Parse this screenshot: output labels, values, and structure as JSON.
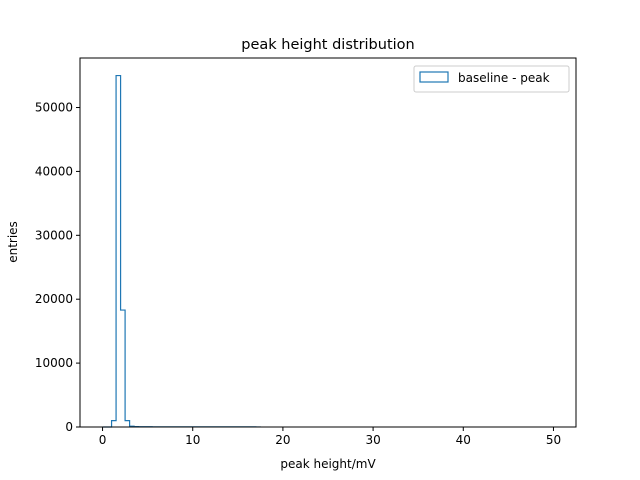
{
  "chart_data": {
    "type": "histogram-step",
    "title": "peak height distribution",
    "xlabel": "peak height/mV",
    "ylabel": "entries",
    "xlim": [
      -2.5,
      52.5
    ],
    "ylim": [
      0,
      57750
    ],
    "xticks": [
      0,
      10,
      20,
      30,
      40,
      50
    ],
    "yticks": [
      0,
      10000,
      20000,
      30000,
      40000,
      50000
    ],
    "legend": {
      "position": "top-right",
      "entries": [
        "baseline - peak"
      ]
    },
    "grid": false,
    "series": [
      {
        "name": "baseline - peak",
        "color": "#1f77b4",
        "bin_edges": [
          0,
          0.5,
          1.0,
          1.5,
          2.0,
          2.5,
          3.0,
          3.5,
          4.0,
          4.5,
          5.0,
          5.5,
          6.0,
          6.5,
          7.0,
          7.5,
          8.0,
          8.5,
          9.0,
          9.5,
          10.0,
          10.5,
          11.0,
          11.5,
          12.0,
          12.5,
          13.0,
          13.5,
          14.0,
          14.5,
          15.0,
          15.5,
          16.0,
          16.5,
          17.0,
          17.5
        ],
        "counts": [
          0,
          0,
          1000,
          55000,
          18300,
          1000,
          120,
          60,
          50,
          40,
          35,
          30,
          30,
          30,
          30,
          25,
          25,
          25,
          25,
          25,
          25,
          25,
          25,
          25,
          25,
          25,
          25,
          20,
          20,
          20,
          20,
          15,
          15,
          15,
          10
        ]
      }
    ]
  }
}
